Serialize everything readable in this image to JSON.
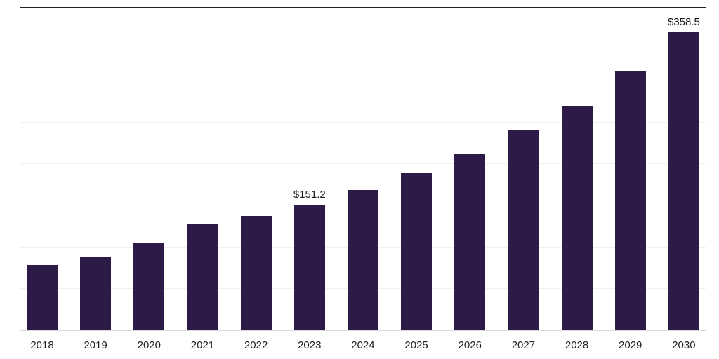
{
  "chart_data": {
    "type": "bar",
    "title": "",
    "xlabel": "",
    "ylabel": "",
    "categories": [
      "2018",
      "2019",
      "2020",
      "2021",
      "2022",
      "2023",
      "2024",
      "2025",
      "2026",
      "2027",
      "2028",
      "2029",
      "2030"
    ],
    "values": [
      78.6,
      88.0,
      104.9,
      128.5,
      137.9,
      151.2,
      169.2,
      189.5,
      211.5,
      240.2,
      270.5,
      312.0,
      358.5
    ],
    "data_labels": [
      "",
      "",
      "",
      "",
      "",
      "$151.2",
      "",
      "",
      "",
      "",
      "",
      "",
      "$358.5"
    ],
    "ylim": [
      0,
      390
    ],
    "grid": "horizontal",
    "grid_step": 50,
    "legend": "none",
    "colors": {
      "bar": "#2e1a47",
      "background": "#ffffff",
      "gridline": "#f0f0f0",
      "top_axis_line": "#1f1f1f",
      "baseline": "#d9d9d9",
      "label_text": "#1a1a1a",
      "tick_text": "#1f1f1f"
    }
  }
}
